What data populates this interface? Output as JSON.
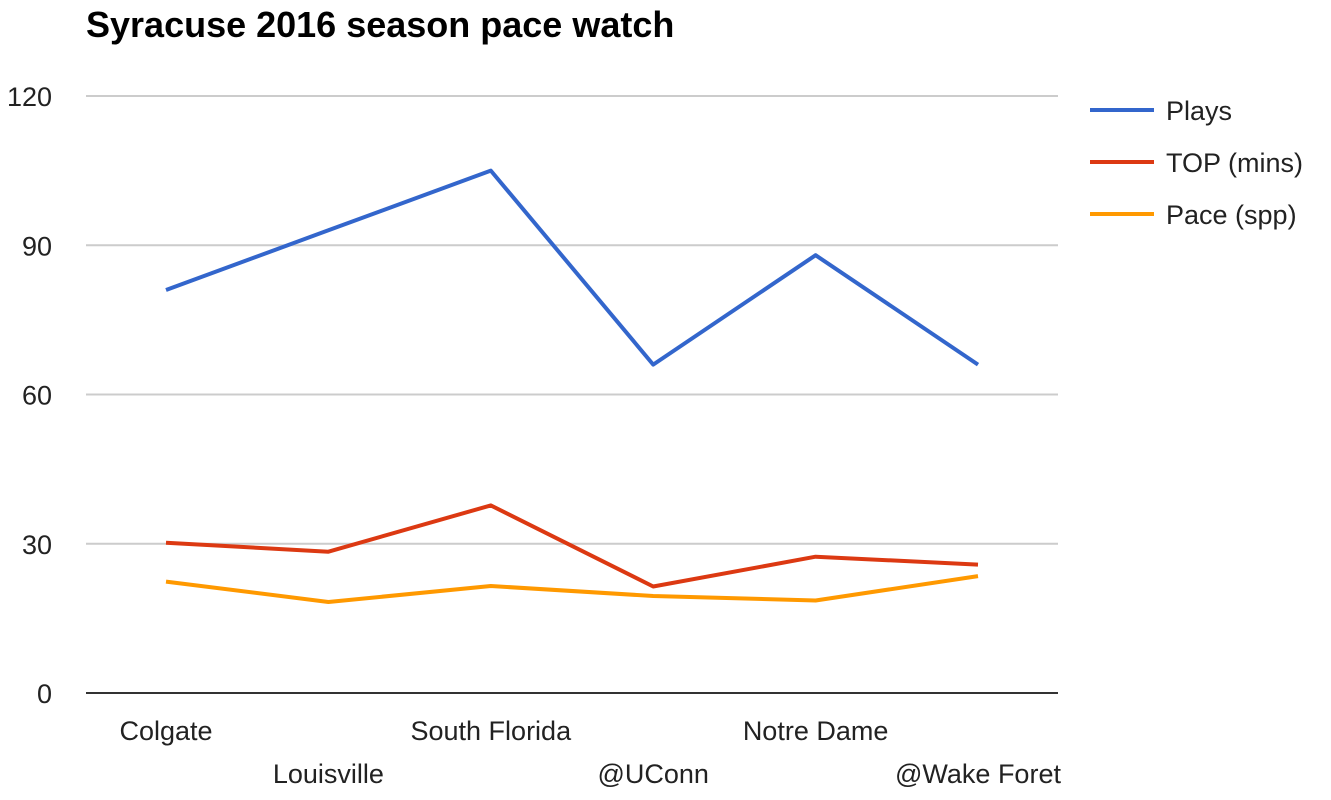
{
  "chart_data": {
    "type": "line",
    "title": "Syracuse 2016 season pace watch",
    "xlabel": "",
    "ylabel": "",
    "categories": [
      "Colgate",
      "Louisville",
      "South Florida",
      "@UConn",
      "Notre Dame",
      "@Wake Foret"
    ],
    "ylim": [
      0,
      120
    ],
    "yticks": [
      0,
      30,
      60,
      90,
      120
    ],
    "grid": true,
    "legend_position": "right",
    "series": [
      {
        "name": "Plays",
        "color": "#3366cc",
        "values": [
          81,
          93,
          105,
          66,
          88,
          66
        ]
      },
      {
        "name": "TOP (mins)",
        "color": "#dc3912",
        "values": [
          30.2,
          28.4,
          37.7,
          21.4,
          27.4,
          25.8
        ]
      },
      {
        "name": "Pace (spp)",
        "color": "#ff9900",
        "values": [
          22.4,
          18.3,
          21.5,
          19.5,
          18.6,
          23.5
        ]
      }
    ]
  }
}
